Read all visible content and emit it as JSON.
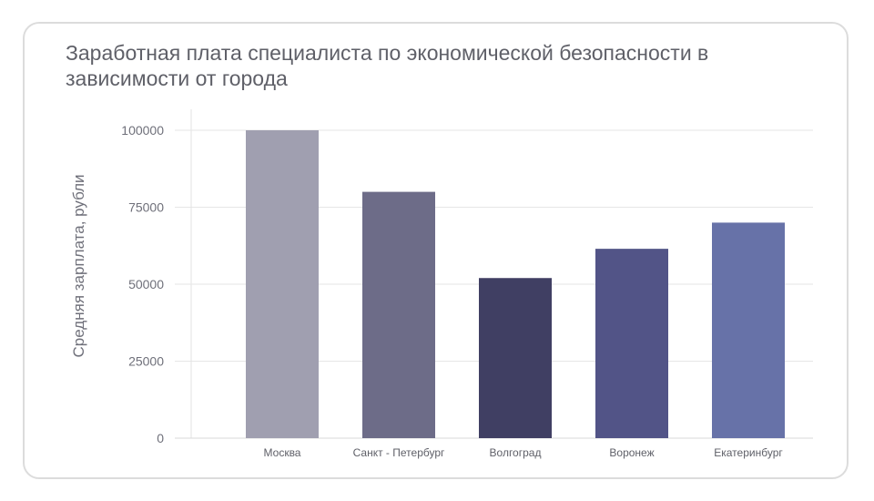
{
  "chart_data": {
    "type": "bar",
    "title": "Заработная плата специалиста по экономической безопасности в зависимости от города",
    "xlabel": "",
    "ylabel": "Средняя зарплата, рубли",
    "categories": [
      "Москва",
      "Санкт - Петербург",
      "Волгоград",
      "Воронеж",
      "Екатеринбург"
    ],
    "values": [
      100000,
      80000,
      52000,
      61500,
      70000
    ],
    "colors": [
      "#a09fb0",
      "#6d6c88",
      "#403f63",
      "#525487",
      "#6772a8"
    ],
    "ylim": [
      0,
      100000
    ],
    "yticks": [
      "0",
      "25000",
      "50000",
      "75000",
      "100000"
    ],
    "ytick_values": [
      0,
      25000,
      50000,
      75000,
      100000
    ],
    "grid": true,
    "legend": "none"
  }
}
